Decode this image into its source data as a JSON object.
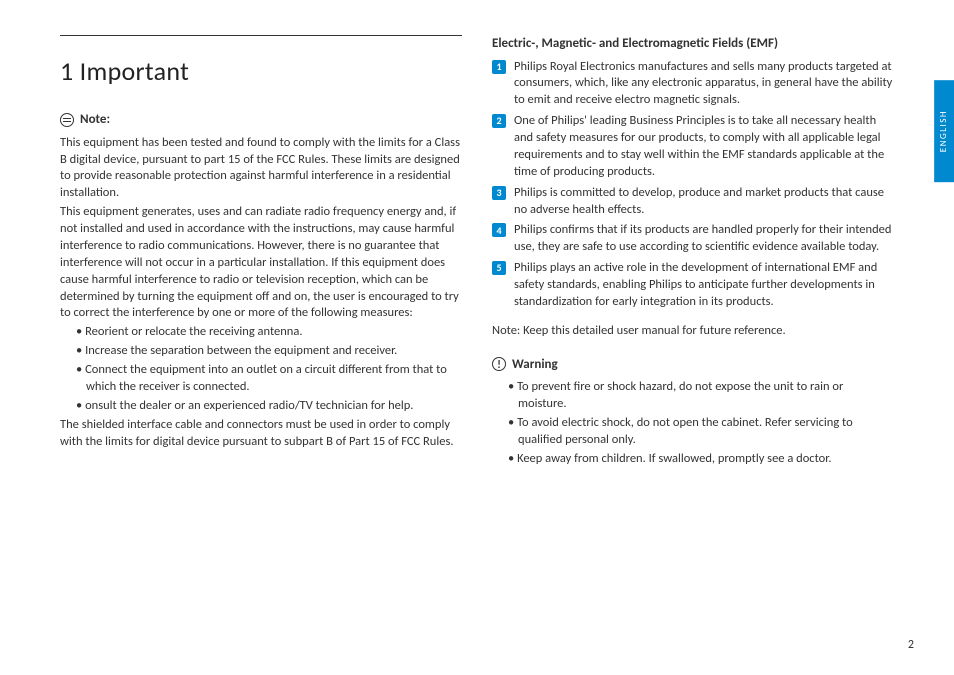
{
  "page_number": "2",
  "language_tab": "ENGLISH",
  "colors": {
    "accent": "#0089cf",
    "text": "#333333",
    "bg": "#ffffff"
  },
  "left": {
    "heading": "1  Important",
    "note_label": "Note:",
    "p1": "This equipment has been tested and found to comply with the limits for a Class B digital device, pursuant to part 15 of the FCC Rules. These limits are designed to provide reasonable protection against harmful interference in a residential installation.",
    "p2": "This equipment generates, uses and can radiate radio frequency energy and, if not installed and used in accordance with the instructions, may cause harmful interference to radio communications. However, there is no guarantee that interference will not occur in a particular installation. If this equipment does cause harmful interference to radio or television reception, which can be determined by turning the equipment off and on, the user is encouraged to try to correct the interference by one or more of the following measures:",
    "bullets": [
      "Reorient or relocate the receiving antenna.",
      "Increase the separation between the equipment and receiver.",
      "Connect the equipment into an outlet on a circuit different from that to which the receiver is connected.",
      "onsult the dealer or an experienced radio/TV technician for help."
    ],
    "p3": "The shielded interface cable and connectors must be used in order to comply with the limits for digital device pursuant to subpart B of Part 15 of FCC Rules."
  },
  "right": {
    "emf_heading": "Electric-, Magnetic- and Electromagnetic Fields (EMF)",
    "emf_items": [
      "Philips Royal Electronics manufactures and sells many products targeted at consumers, which, like any electronic apparatus, in general have the ability to emit and receive electro magnetic signals.",
      "One of Philips' leading Business Principles is to take all necessary health and safety measures for our products, to comply with all applicable legal requirements and to stay well within the EMF standards applicable at the time of producing products.",
      "Philips is committed to develop, produce and market products that cause no adverse health effects.",
      "Philips confirms that if its products are handled properly for their intended use, they are safe to use according to scientific evidence available today.",
      "Philips plays an active role in the development of international EMF and safety standards, enabling Philips to anticipate further developments in standardization for early integration in its products."
    ],
    "ref_note": "Note: Keep this detailed user manual for future reference.",
    "warn_label": "Warning",
    "warn_items": [
      "To prevent fire or shock hazard, do not expose the unit to rain or moisture.",
      "To avoid electric shock, do not open the cabinet. Refer servicing to qualified personal only.",
      "Keep away from children. If swallowed, promptly see a doctor."
    ]
  }
}
